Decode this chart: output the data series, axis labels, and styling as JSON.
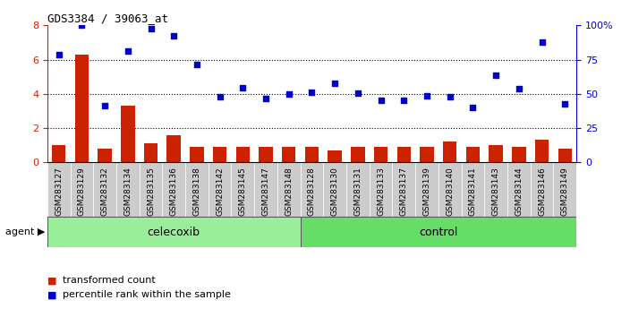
{
  "title": "GDS3384 / 39063_at",
  "samples": [
    "GSM283127",
    "GSM283129",
    "GSM283132",
    "GSM283134",
    "GSM283135",
    "GSM283136",
    "GSM283138",
    "GSM283142",
    "GSM283145",
    "GSM283147",
    "GSM283148",
    "GSM283128",
    "GSM283130",
    "GSM283131",
    "GSM283133",
    "GSM283137",
    "GSM283139",
    "GSM283140",
    "GSM283141",
    "GSM283143",
    "GSM283144",
    "GSM283146",
    "GSM283149"
  ],
  "transformed_count": [
    1.0,
    6.3,
    0.8,
    3.3,
    1.1,
    1.6,
    0.9,
    0.9,
    0.9,
    0.9,
    0.9,
    0.9,
    0.7,
    0.9,
    0.9,
    0.9,
    0.9,
    1.2,
    0.9,
    1.0,
    0.9,
    1.3,
    0.8
  ],
  "percentile_rank": [
    6.3,
    8.0,
    3.3,
    6.5,
    7.8,
    7.4,
    5.7,
    3.85,
    4.35,
    3.75,
    4.0,
    4.1,
    4.6,
    4.05,
    3.6,
    3.6,
    3.9,
    3.85,
    3.2,
    5.1,
    4.3,
    7.0,
    3.4
  ],
  "celecoxib_count": 11,
  "control_count": 12,
  "bar_color": "#cc2200",
  "dot_color": "#0000cc",
  "ylim": [
    0,
    8
  ],
  "yticks_left": [
    0,
    2,
    4,
    6,
    8
  ],
  "ytick_labels_right": [
    "0",
    "25",
    "50",
    "75",
    "100%"
  ],
  "celecoxib_bg": "#99ee99",
  "control_bg": "#66dd66",
  "sample_bg": "#cccccc",
  "plot_bg": "#ffffff",
  "agent_label": "agent",
  "celecoxib_label": "celecoxib",
  "control_label": "control",
  "legend_bar_label": "transformed count",
  "legend_dot_label": "percentile rank within the sample",
  "dotted_lines": [
    2.0,
    4.0,
    6.0
  ],
  "border_color": "#000000"
}
